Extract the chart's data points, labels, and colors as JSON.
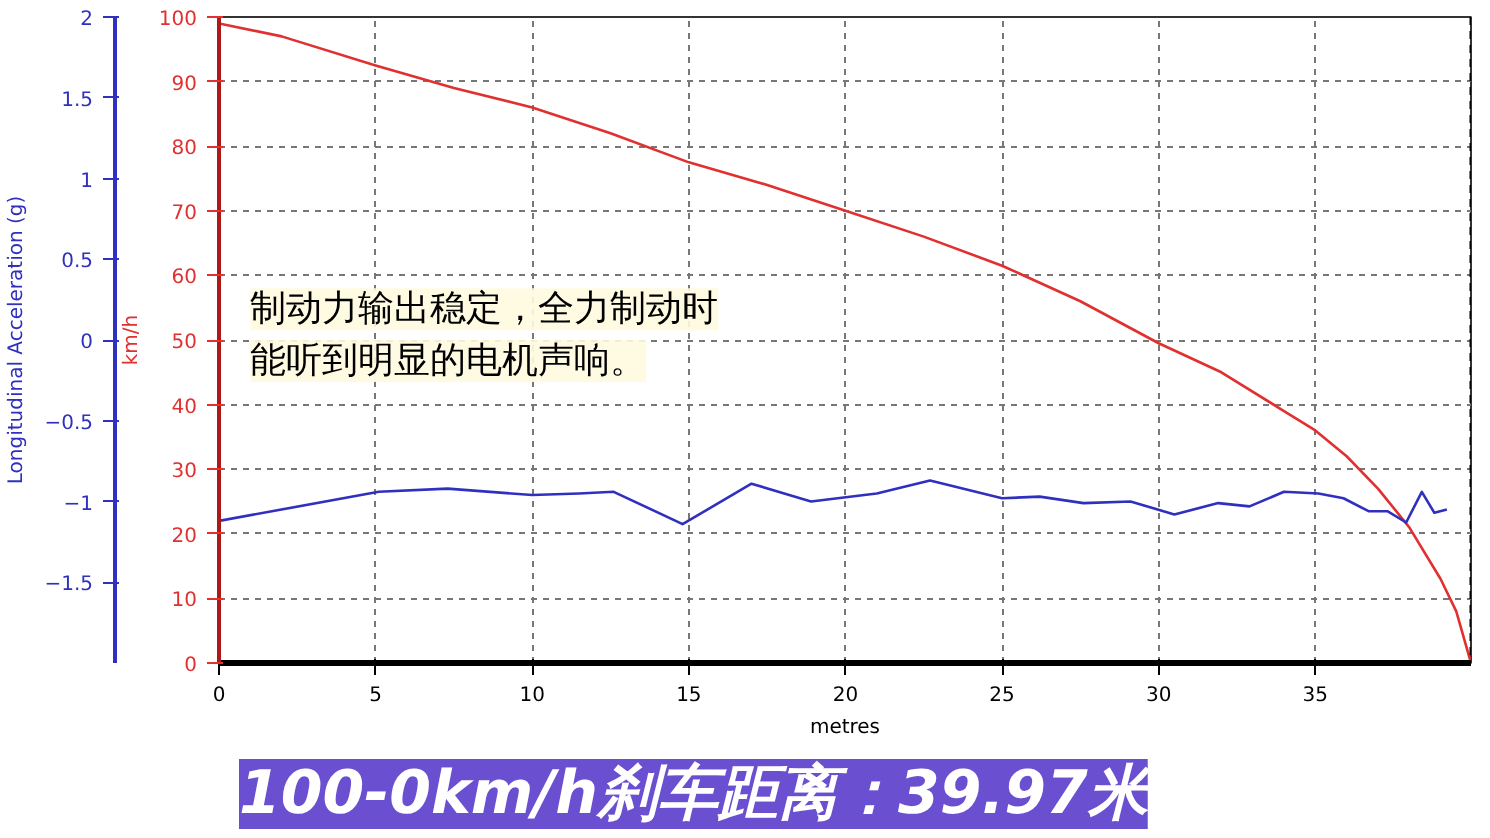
{
  "chart_data": {
    "type": "line",
    "title": "100-0km/h刹车距离：39.97米",
    "xlabel": "metres",
    "ylabel": "km/h",
    "y2label": "Longitudinal Acceleration (g)",
    "annotations": [
      "制动力输出稳定，全力制动时",
      "能听到明显的电机声响。"
    ],
    "xlim": [
      0,
      39.97
    ],
    "xticks": [
      0,
      5,
      10,
      15,
      20,
      25,
      30,
      35
    ],
    "ylim": [
      0,
      100
    ],
    "yticks": [
      0,
      10,
      20,
      30,
      40,
      50,
      60,
      70,
      80,
      90,
      100
    ],
    "y2lim": [
      -2,
      2
    ],
    "y2ticks": [
      -1.5,
      -1,
      -0.5,
      0,
      0.5,
      1,
      1.5,
      2
    ],
    "grid": true,
    "marker": "none",
    "line_style": "solid",
    "ref_lines": [
      {
        "axis": "x",
        "value": 39.97,
        "label": null,
        "color": "#000000",
        "line_style": "dashed"
      }
    ],
    "series": [
      {
        "color": "#e03030",
        "x": [
          0,
          2,
          5,
          7.5,
          10,
          12.5,
          15,
          17.5,
          20,
          22.5,
          25,
          27.5,
          30,
          32,
          34,
          35,
          36,
          37,
          38,
          39,
          39.5,
          39.97
        ],
        "values": [
          99,
          97,
          92.5,
          89,
          86,
          82,
          77.5,
          74,
          70,
          66,
          61.5,
          56,
          49.5,
          45,
          39,
          36,
          32,
          27,
          21,
          13,
          8,
          0
        ]
      },
      {
        "color": "#3030c0",
        "axis": "y2",
        "x": [
          0,
          5.1,
          7.3,
          10.0,
          11.5,
          12.6,
          14.8,
          17.0,
          18.9,
          20.6,
          21.0,
          22.7,
          25.0,
          26.2,
          27.6,
          29.1,
          30.5,
          31.9,
          32.9,
          34.0,
          35.1,
          35.9,
          36.7,
          37.3,
          37.9,
          38.4,
          38.8,
          39.2
        ],
        "values": [
          -1.12,
          -0.94,
          -0.92,
          -0.96,
          -0.95,
          -0.94,
          -1.14,
          -0.89,
          -1.0,
          -0.96,
          -0.95,
          -0.87,
          -0.98,
          -0.97,
          -1.01,
          -1.0,
          -1.08,
          -1.01,
          -1.03,
          -0.94,
          -0.95,
          -0.98,
          -1.06,
          -1.06,
          -1.13,
          -0.94,
          -1.07,
          -1.05
        ]
      }
    ]
  }
}
